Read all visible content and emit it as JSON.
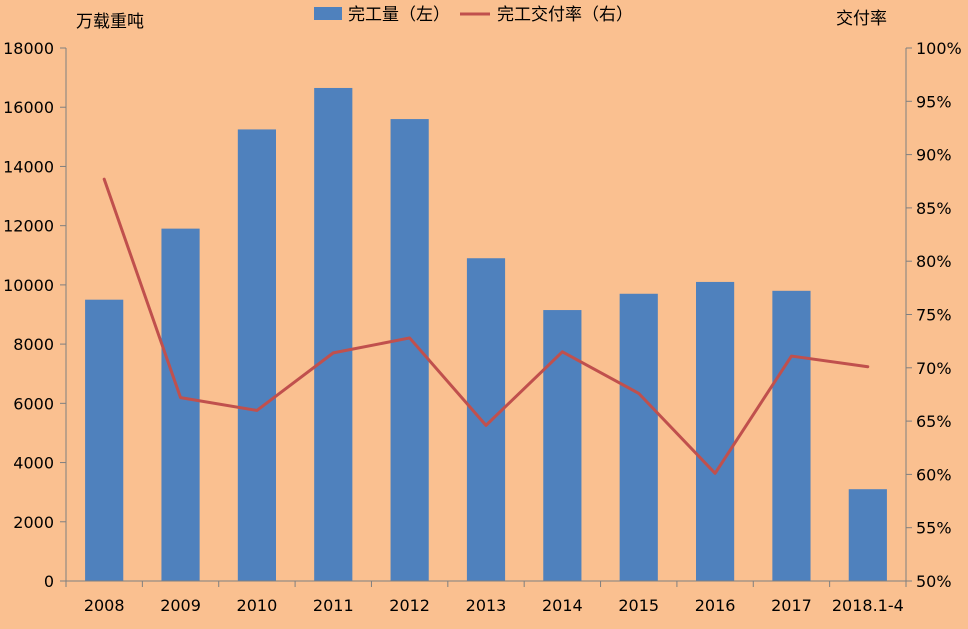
{
  "chart_data": {
    "type": "bar",
    "categories": [
      "2008",
      "2009",
      "2010",
      "2011",
      "2012",
      "2013",
      "2014",
      "2015",
      "2016",
      "2017",
      "2018.1-4"
    ],
    "series": [
      {
        "name": "完工量（左）",
        "type": "bar",
        "axis": "left",
        "color": "#4F81BD",
        "values": [
          9500,
          11900,
          15250,
          16650,
          15600,
          10900,
          9150,
          9700,
          10100,
          9800,
          3100
        ]
      },
      {
        "name": "完工交付率（右）",
        "type": "line",
        "axis": "right",
        "color": "#C0504D",
        "values": [
          0.877,
          0.672,
          0.66,
          0.714,
          0.728,
          0.646,
          0.715,
          0.676,
          0.601,
          0.711,
          0.701
        ]
      }
    ],
    "ylabel_left": "万载重吨",
    "ylabel_right": "交付率",
    "ylim_left": [
      0,
      18000
    ],
    "ylim_right": [
      0.5,
      1.0
    ],
    "yticks_left": [
      "0",
      "2000",
      "4000",
      "6000",
      "8000",
      "10000",
      "12000",
      "14000",
      "16000",
      "18000"
    ],
    "yticks_right": [
      "50%",
      "55%",
      "60%",
      "65%",
      "70%",
      "75%",
      "80%",
      "85%",
      "90%",
      "95%",
      "100%"
    ],
    "grid": false,
    "legend_position": "top"
  }
}
